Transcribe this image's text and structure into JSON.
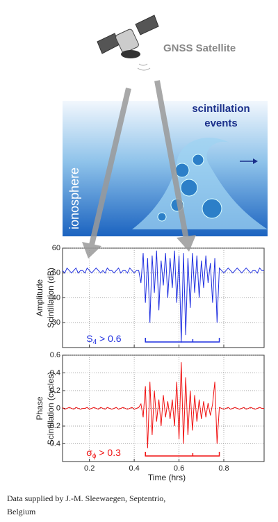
{
  "header": {
    "satellite_label": "GNSS Satellite",
    "region_label": "ionosphere",
    "events_label": [
      "scintillation",
      "events"
    ]
  },
  "chart_data": [
    {
      "type": "line",
      "ylabel": [
        "Amplitude",
        "Scintillation (dB)"
      ],
      "x": [
        0.08,
        0.09,
        0.1,
        0.11,
        0.12,
        0.13,
        0.14,
        0.15,
        0.16,
        0.17,
        0.18,
        0.19,
        0.2,
        0.21,
        0.22,
        0.23,
        0.24,
        0.25,
        0.26,
        0.27,
        0.28,
        0.29,
        0.3,
        0.31,
        0.32,
        0.33,
        0.34,
        0.35,
        0.36,
        0.37,
        0.38,
        0.39,
        0.4,
        0.41,
        0.42,
        0.43,
        0.44,
        0.45,
        0.46,
        0.47,
        0.48,
        0.49,
        0.5,
        0.51,
        0.52,
        0.53,
        0.54,
        0.55,
        0.56,
        0.57,
        0.58,
        0.59,
        0.6,
        0.61,
        0.62,
        0.63,
        0.64,
        0.65,
        0.66,
        0.67,
        0.68,
        0.69,
        0.7,
        0.71,
        0.72,
        0.73,
        0.74,
        0.75,
        0.76,
        0.77,
        0.78,
        0.79,
        0.8,
        0.81,
        0.82,
        0.83,
        0.84,
        0.85,
        0.86,
        0.87,
        0.88,
        0.89,
        0.9,
        0.91,
        0.92,
        0.93,
        0.94,
        0.95,
        0.96,
        0.97,
        0.98
      ],
      "series": [
        {
          "color": "#1f2fe0",
          "values": [
            51,
            50,
            52,
            51,
            50,
            51,
            52,
            50,
            51,
            51,
            50,
            52,
            51,
            50,
            51,
            52,
            51,
            50,
            51,
            50,
            52,
            51,
            51,
            50,
            51,
            52,
            50,
            51,
            51,
            50,
            52,
            51,
            50,
            51,
            51,
            46,
            58,
            38,
            56,
            30,
            57,
            42,
            59,
            35,
            55,
            45,
            58,
            40,
            56,
            44,
            59,
            38,
            57,
            22,
            58,
            25,
            56,
            36,
            58,
            42,
            57,
            40,
            55,
            44,
            57,
            46,
            54,
            38,
            56,
            30,
            52,
            51,
            50,
            51,
            52,
            51,
            50,
            51,
            52,
            51,
            50,
            51,
            52,
            51,
            50,
            51,
            51,
            50,
            52,
            51,
            51
          ]
        }
      ],
      "xlim": [
        0.08,
        0.98
      ],
      "ylim": [
        20,
        60
      ],
      "yticks": [
        30,
        40,
        50,
        60
      ],
      "grid": true,
      "annotation": {
        "symbol": "S",
        "subscript": "4",
        "text": " > 0.6",
        "color": "#1f2fe0",
        "range": [
          0.45,
          0.78
        ]
      }
    },
    {
      "type": "line",
      "ylabel": [
        "Phase",
        "Scintillation (cycles)"
      ],
      "xlabel": "Time (hrs)",
      "x": [
        0.08,
        0.09,
        0.1,
        0.11,
        0.12,
        0.13,
        0.14,
        0.15,
        0.16,
        0.17,
        0.18,
        0.19,
        0.2,
        0.21,
        0.22,
        0.23,
        0.24,
        0.25,
        0.26,
        0.27,
        0.28,
        0.29,
        0.3,
        0.31,
        0.32,
        0.33,
        0.34,
        0.35,
        0.36,
        0.37,
        0.38,
        0.39,
        0.4,
        0.41,
        0.42,
        0.43,
        0.44,
        0.45,
        0.46,
        0.47,
        0.48,
        0.49,
        0.5,
        0.51,
        0.52,
        0.53,
        0.54,
        0.55,
        0.56,
        0.57,
        0.58,
        0.59,
        0.6,
        0.61,
        0.62,
        0.63,
        0.64,
        0.65,
        0.66,
        0.67,
        0.68,
        0.69,
        0.7,
        0.71,
        0.72,
        0.73,
        0.74,
        0.75,
        0.76,
        0.77,
        0.78,
        0.79,
        0.8,
        0.81,
        0.82,
        0.83,
        0.84,
        0.85,
        0.86,
        0.87,
        0.88,
        0.89,
        0.9,
        0.91,
        0.92,
        0.93,
        0.94,
        0.95,
        0.96,
        0.97,
        0.98
      ],
      "series": [
        {
          "color": "#f01010",
          "values": [
            0.01,
            -0.01,
            0,
            0.01,
            0,
            -0.01,
            0.01,
            0,
            -0.01,
            0,
            0,
            0.01,
            -0.01,
            0,
            0.01,
            0,
            -0.01,
            0.01,
            0,
            -0.01,
            0.01,
            0,
            -0.01,
            0,
            0.01,
            -0.01,
            0,
            0.01,
            0,
            -0.01,
            0,
            0.01,
            -0.01,
            0,
            0.01,
            0.05,
            -0.1,
            0.25,
            -0.45,
            0.3,
            -0.3,
            0.2,
            -0.15,
            0.1,
            -0.2,
            0.15,
            -0.1,
            0.08,
            -0.12,
            0.1,
            -0.2,
            0.3,
            -0.35,
            0.52,
            -0.4,
            0.35,
            -0.3,
            0.2,
            -0.25,
            0.15,
            -0.15,
            0.1,
            -0.12,
            0.08,
            -0.1,
            0.06,
            -0.08,
            0.05,
            0.3,
            -0.4,
            0.01,
            0,
            -0.01,
            0,
            0.01,
            -0.01,
            0,
            0.01,
            0,
            -0.01,
            0,
            0.01,
            -0.01,
            0,
            0.01,
            0,
            -0.01,
            0,
            0.01,
            0,
            0
          ]
        }
      ],
      "xlim": [
        0.08,
        0.98
      ],
      "ylim": [
        -0.6,
        0.6
      ],
      "yticks": [
        -0.4,
        -0.2,
        0,
        0.2,
        0.4,
        0.6
      ],
      "xticks": [
        0.2,
        0.4,
        0.6,
        0.8
      ],
      "grid": true,
      "annotation": {
        "symbol": "σ",
        "subscript": "ϕ",
        "text": " > 0.3",
        "color": "#f01010",
        "range": [
          0.45,
          0.78
        ]
      }
    }
  ],
  "footer": [
    "Data supplied by J.-M. Sleewaegen, Septentrio,",
    "Belgium"
  ]
}
